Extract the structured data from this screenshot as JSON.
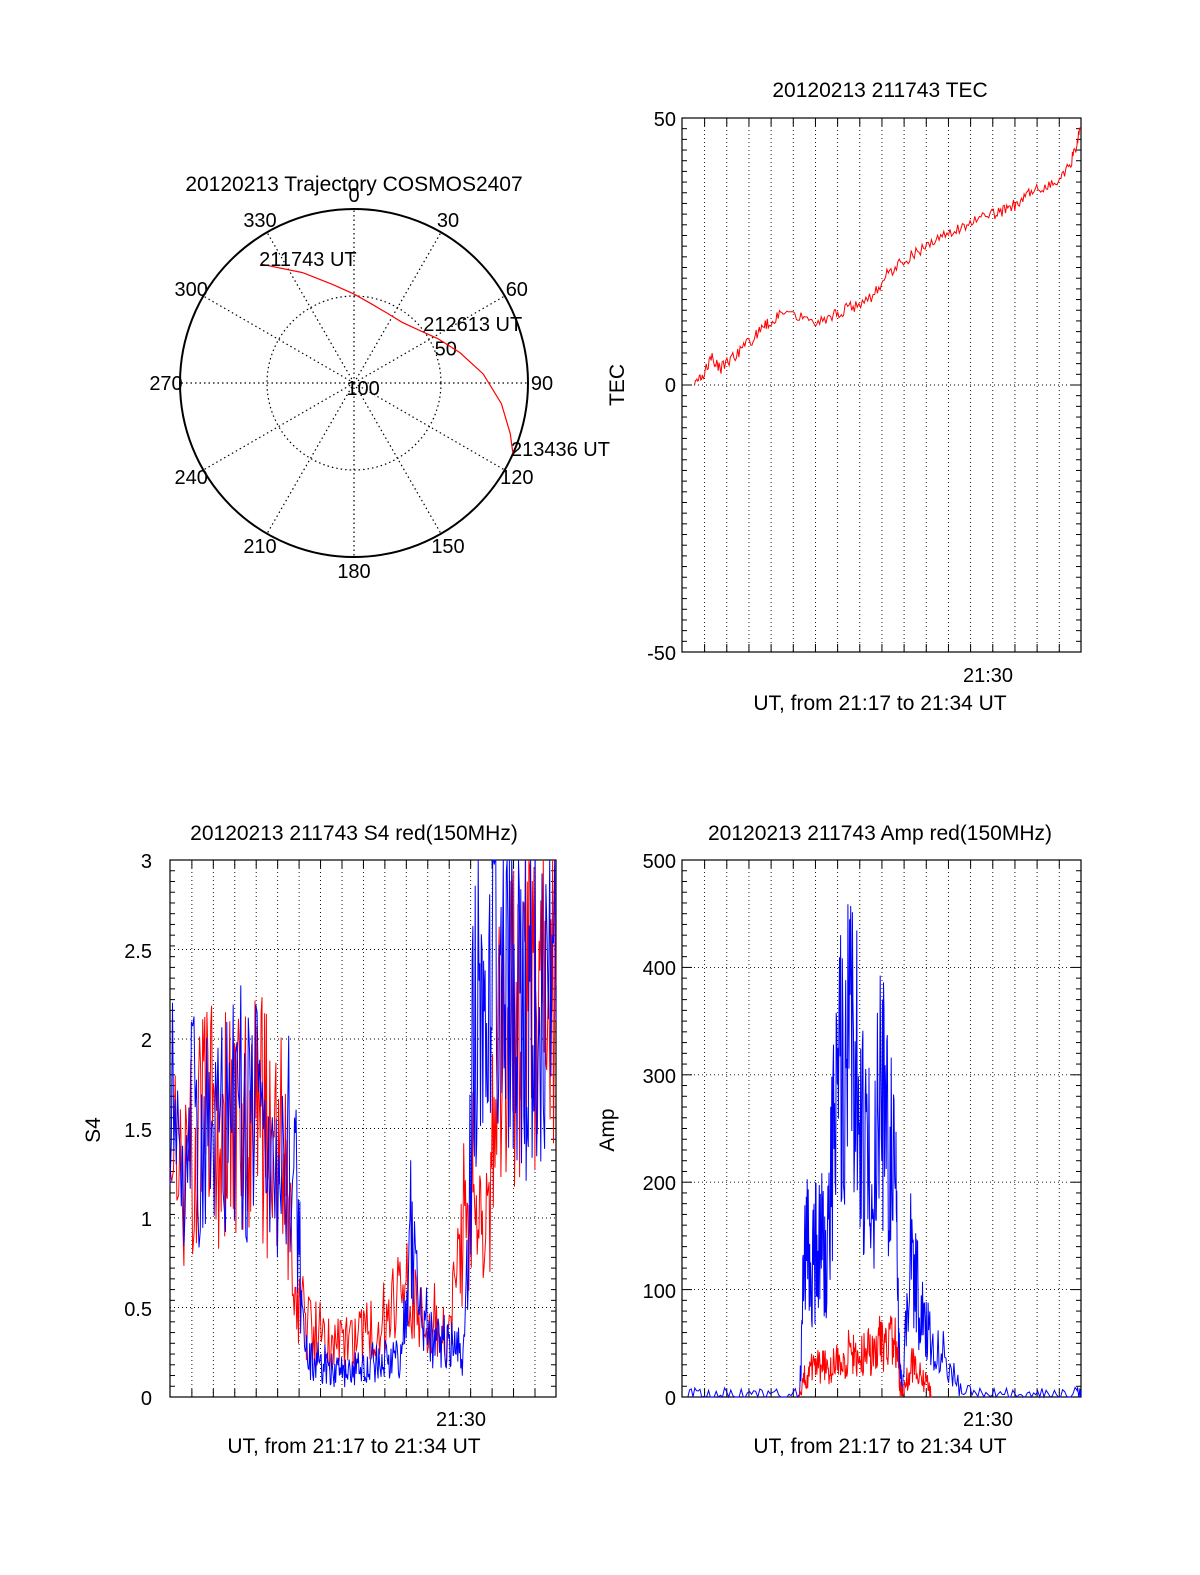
{
  "colors": {
    "red": "#ff0000",
    "blue": "#0000ff",
    "axis": "#000000",
    "background": "#ffffff"
  },
  "chart_data": [
    {
      "type": "polar",
      "title": "20120213 Trajectory COSMOS2407",
      "angle_labels": [
        "0",
        "30",
        "60",
        "90",
        "120",
        "150",
        "180",
        "210",
        "240",
        "270",
        "300",
        "330"
      ],
      "radial_labels": [
        "50",
        "100"
      ],
      "grid": true,
      "series": [
        {
          "color": "red",
          "points": [
            {
              "azimuth": 322,
              "elevation": 12
            },
            {
              "azimuth": 335,
              "elevation": 27
            },
            {
              "azimuth": 348,
              "elevation": 38
            },
            {
              "azimuth": 0,
              "elevation": 44
            },
            {
              "azimuth": 12,
              "elevation": 48
            },
            {
              "azimuth": 25,
              "elevation": 50
            },
            {
              "azimuth": 38,
              "elevation": 50
            },
            {
              "azimuth": 50,
              "elevation": 47
            },
            {
              "azimuth": 62,
              "elevation": 41
            },
            {
              "azimuth": 74,
              "elevation": 33
            },
            {
              "azimuth": 86,
              "elevation": 23
            },
            {
              "azimuth": 98,
              "elevation": 13
            },
            {
              "azimuth": 108,
              "elevation": 5
            },
            {
              "azimuth": 114,
              "elevation": 0
            }
          ]
        }
      ],
      "annotations": [
        {
          "text": "211743 UT",
          "azimuth": 322,
          "elevation": 12
        },
        {
          "text": "212613 UT",
          "azimuth": 55,
          "elevation": 45
        },
        {
          "text": "213436 UT",
          "azimuth": 114,
          "elevation": 0
        }
      ]
    },
    {
      "type": "line",
      "title": "20120213 211743 TEC",
      "xlabel": "UT, from 21:17 to 21:34 UT",
      "ylabel": "TEC",
      "xtick_labels": [
        "21:30"
      ],
      "xlim": [
        21.283,
        21.583
      ],
      "ylim": [
        -50,
        50
      ],
      "ytick_labels": [
        "-50",
        "0",
        "50"
      ],
      "grid": "dotted vertical",
      "series": [
        {
          "color": "red",
          "x": [
            21.2925,
            21.2983,
            21.3056,
            21.3114,
            21.3203,
            21.3294,
            21.3382,
            21.3441,
            21.3517,
            21.3608,
            21.3725,
            21.3842,
            21.3958,
            21.4045,
            21.4147,
            21.4279,
            21.4381,
            21.4484,
            21.46,
            21.4717,
            21.4833,
            21.495,
            21.5066,
            21.5183,
            21.5271,
            21.5358,
            21.5446,
            21.5548,
            21.565,
            21.5745,
            21.5796,
            21.5827
          ],
          "y": [
            0,
            2,
            5,
            3,
            5,
            7,
            9,
            11,
            12,
            14,
            13,
            12,
            13,
            14,
            15,
            17,
            21,
            23,
            25,
            27,
            28,
            30,
            31,
            32,
            33,
            34,
            36,
            37,
            38,
            41,
            45,
            48
          ]
        }
      ]
    },
    {
      "type": "line",
      "title": "20120213 211743 S4 red(150MHz)",
      "xlabel": "UT, from 21:17 to 21:34 UT",
      "ylabel": "S4",
      "xtick_labels": [
        "21:30"
      ],
      "xlim": [
        21.283,
        21.583
      ],
      "ylim": [
        0,
        3
      ],
      "ytick_labels": [
        "0",
        "0.5",
        "1",
        "1.5",
        "2",
        "2.5",
        "3"
      ],
      "grid": "dotted",
      "series": [
        {
          "color": "red",
          "x": [
            21.283,
            21.3019,
            21.3133,
            21.3228,
            21.3322,
            21.3417,
            21.3511,
            21.3606,
            21.37,
            21.3795,
            21.389,
            21.4005,
            21.412,
            21.4236,
            21.4351,
            21.4467,
            21.4578,
            21.4688,
            21.4799,
            21.4909,
            21.5001,
            21.5093,
            21.5185,
            21.5277,
            21.5369,
            21.5461,
            21.5554,
            21.5646,
            21.5738,
            21.583
          ],
          "y": [
            1.5,
            1.3,
            1.6,
            1.5,
            1.4,
            1.5,
            1.6,
            1.4,
            1.5,
            0.6,
            0.4,
            0.35,
            0.3,
            0.3,
            0.35,
            0.4,
            0.5,
            0.6,
            0.5,
            0.4,
            0.3,
            0.9,
            1.2,
            0.8,
            1.8,
            2,
            2.2,
            2.1,
            2.4,
            2.3
          ]
        },
        {
          "color": "blue",
          "x": [
            21.283,
            21.2967,
            21.3105,
            21.3242,
            21.338,
            21.3517,
            21.3655,
            21.3792,
            21.3875,
            21.3957,
            21.404,
            21.4123,
            21.4205,
            21.4288,
            21.437,
            21.4453,
            21.4536,
            21.4618,
            21.4701,
            21.4783,
            21.4866,
            21.4949,
            21.5031,
            21.5114,
            21.5196,
            21.5279,
            21.5362,
            21.5444,
            21.5527,
            21.5609,
            21.5692,
            21.583
          ],
          "y": [
            1.5,
            1.6,
            1.4,
            1.5,
            1.6,
            1.5,
            1.4,
            1.5,
            0.25,
            0.2,
            0.18,
            0.15,
            0.15,
            0.16,
            0.18,
            0.2,
            0.2,
            0.2,
            0.9,
            0.5,
            0.35,
            0.3,
            0.28,
            0.25,
            2.1,
            2.2,
            2.3,
            2.2,
            2.4,
            2.2,
            2.3,
            2.1
          ]
        }
      ]
    },
    {
      "type": "line",
      "title": "20120213 211743 Amp red(150MHz)",
      "xlabel": "UT, from 21:17 to 21:34 UT",
      "ylabel": "Amp",
      "xtick_labels": [
        "21:30"
      ],
      "xlim": [
        21.283,
        21.583
      ],
      "ylim": [
        0,
        500
      ],
      "ytick_labels": [
        "0",
        "100",
        "200",
        "300",
        "400",
        "500"
      ],
      "grid": "dotted",
      "series": [
        {
          "color": "blue",
          "x": [
            21.2874,
            21.3056,
            21.3275,
            21.3494,
            21.3713,
            21.3757,
            21.3808,
            21.3859,
            21.391,
            21.3969,
            21.4027,
            21.4086,
            21.4144,
            21.4203,
            21.4261,
            21.432,
            21.4378,
            21.4437,
            21.4466,
            21.4488,
            21.4554,
            21.462,
            21.4685,
            21.4795,
            21.4934,
            21.5145,
            21.5364,
            21.5583,
            21.5801,
            21.583
          ],
          "y": [
            3,
            2,
            3,
            2,
            2,
            150,
            110,
            160,
            130,
            250,
            300,
            370,
            330,
            220,
            200,
            280,
            250,
            180,
            30,
            5,
            140,
            80,
            60,
            40,
            5,
            2,
            3,
            2,
            3,
            2
          ]
        },
        {
          "color": "red",
          "x": [
            21.3713,
            21.3757,
            21.3808,
            21.3859,
            21.391,
            21.3969,
            21.4027,
            21.4086,
            21.4144,
            21.4203,
            21.4261,
            21.432,
            21.4378,
            21.4437,
            21.4466,
            21.4488,
            21.4554,
            21.462,
            21.4685,
            21.4707
          ],
          "y": [
            0,
            20,
            25,
            30,
            28,
            30,
            35,
            40,
            35,
            40,
            45,
            50,
            45,
            60,
            10,
            5,
            30,
            20,
            10,
            0
          ]
        }
      ]
    }
  ]
}
